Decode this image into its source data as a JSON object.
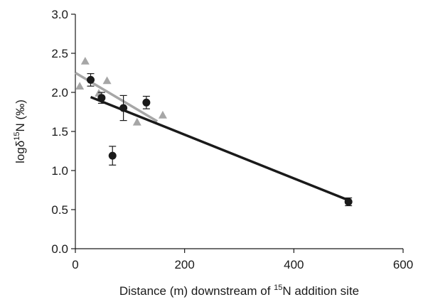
{
  "chart_data": {
    "type": "scatter",
    "title": "",
    "xlabel": {
      "pre": "Distance (m) downstream of ",
      "sup": "15",
      "post": "N addition site"
    },
    "ylabel": {
      "pre": "logδ",
      "sup": "15",
      "post": "N (‰)"
    },
    "xlim": [
      0,
      600
    ],
    "ylim": [
      0.0,
      3.0
    ],
    "x_ticks": [
      0,
      200,
      400,
      600
    ],
    "y_ticks": [
      0.0,
      0.5,
      1.0,
      1.5,
      2.0,
      2.5,
      3.0
    ],
    "y_tick_labels": [
      "0.0",
      "0.5",
      "1.0",
      "1.5",
      "2.0",
      "2.5",
      "3.0"
    ],
    "grid": false,
    "colors": {
      "circles": "#1a1a1a",
      "triangles": "#a6a6a6",
      "axis": "#1a1a1a"
    },
    "series": [
      {
        "marker": "circle",
        "points": [
          {
            "x": 28,
            "y": 2.16,
            "err": 0.08
          },
          {
            "x": 48,
            "y": 1.93,
            "err": 0.07
          },
          {
            "x": 68,
            "y": 1.19,
            "err": 0.12
          },
          {
            "x": 88,
            "y": 1.8,
            "err": 0.16
          },
          {
            "x": 130,
            "y": 1.87,
            "err": 0.08
          },
          {
            "x": 500,
            "y": 0.6,
            "err": 0.05
          }
        ],
        "fit": [
          [
            28,
            1.94
          ],
          [
            500,
            0.62
          ]
        ]
      },
      {
        "marker": "triangle",
        "points": [
          {
            "x": 8,
            "y": 2.08
          },
          {
            "x": 18,
            "y": 2.4
          },
          {
            "x": 43,
            "y": 1.99
          },
          {
            "x": 58,
            "y": 2.15
          },
          {
            "x": 113,
            "y": 1.62
          },
          {
            "x": 160,
            "y": 1.71
          }
        ],
        "fit": [
          [
            0,
            2.25
          ],
          [
            150,
            1.63
          ]
        ]
      }
    ]
  }
}
